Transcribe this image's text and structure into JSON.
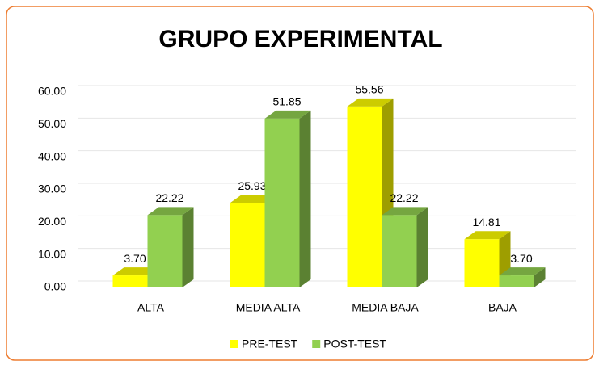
{
  "chart_data": {
    "type": "bar3d",
    "title": "GRUPO EXPERIMENTAL",
    "categories": [
      "ALTA",
      "MEDIA ALTA",
      "MEDIA BAJA",
      "BAJA"
    ],
    "series": [
      {
        "name": "PRE-TEST",
        "color": "#ffff00",
        "values": [
          3.7,
          25.93,
          55.56,
          14.81
        ],
        "value_labels": [
          "3.70",
          "25.93",
          "55.56",
          "14.81"
        ]
      },
      {
        "name": "POST-TEST",
        "color": "#92d050",
        "values": [
          22.22,
          51.85,
          22.22,
          3.7
        ],
        "value_labels": [
          "22.22",
          "51.85",
          "22.22",
          "3.70"
        ]
      }
    ],
    "ylim": [
      0,
      60
    ],
    "yticks": [
      {
        "value": 0,
        "label": "0.00"
      },
      {
        "value": 10,
        "label": "10.00"
      },
      {
        "value": 20,
        "label": "20.00"
      },
      {
        "value": 30,
        "label": "30.00"
      },
      {
        "value": 40,
        "label": "40.00"
      },
      {
        "value": 50,
        "label": "50.00"
      },
      {
        "value": 60,
        "label": "60.00"
      }
    ],
    "grid": true,
    "legend": "bottom"
  }
}
